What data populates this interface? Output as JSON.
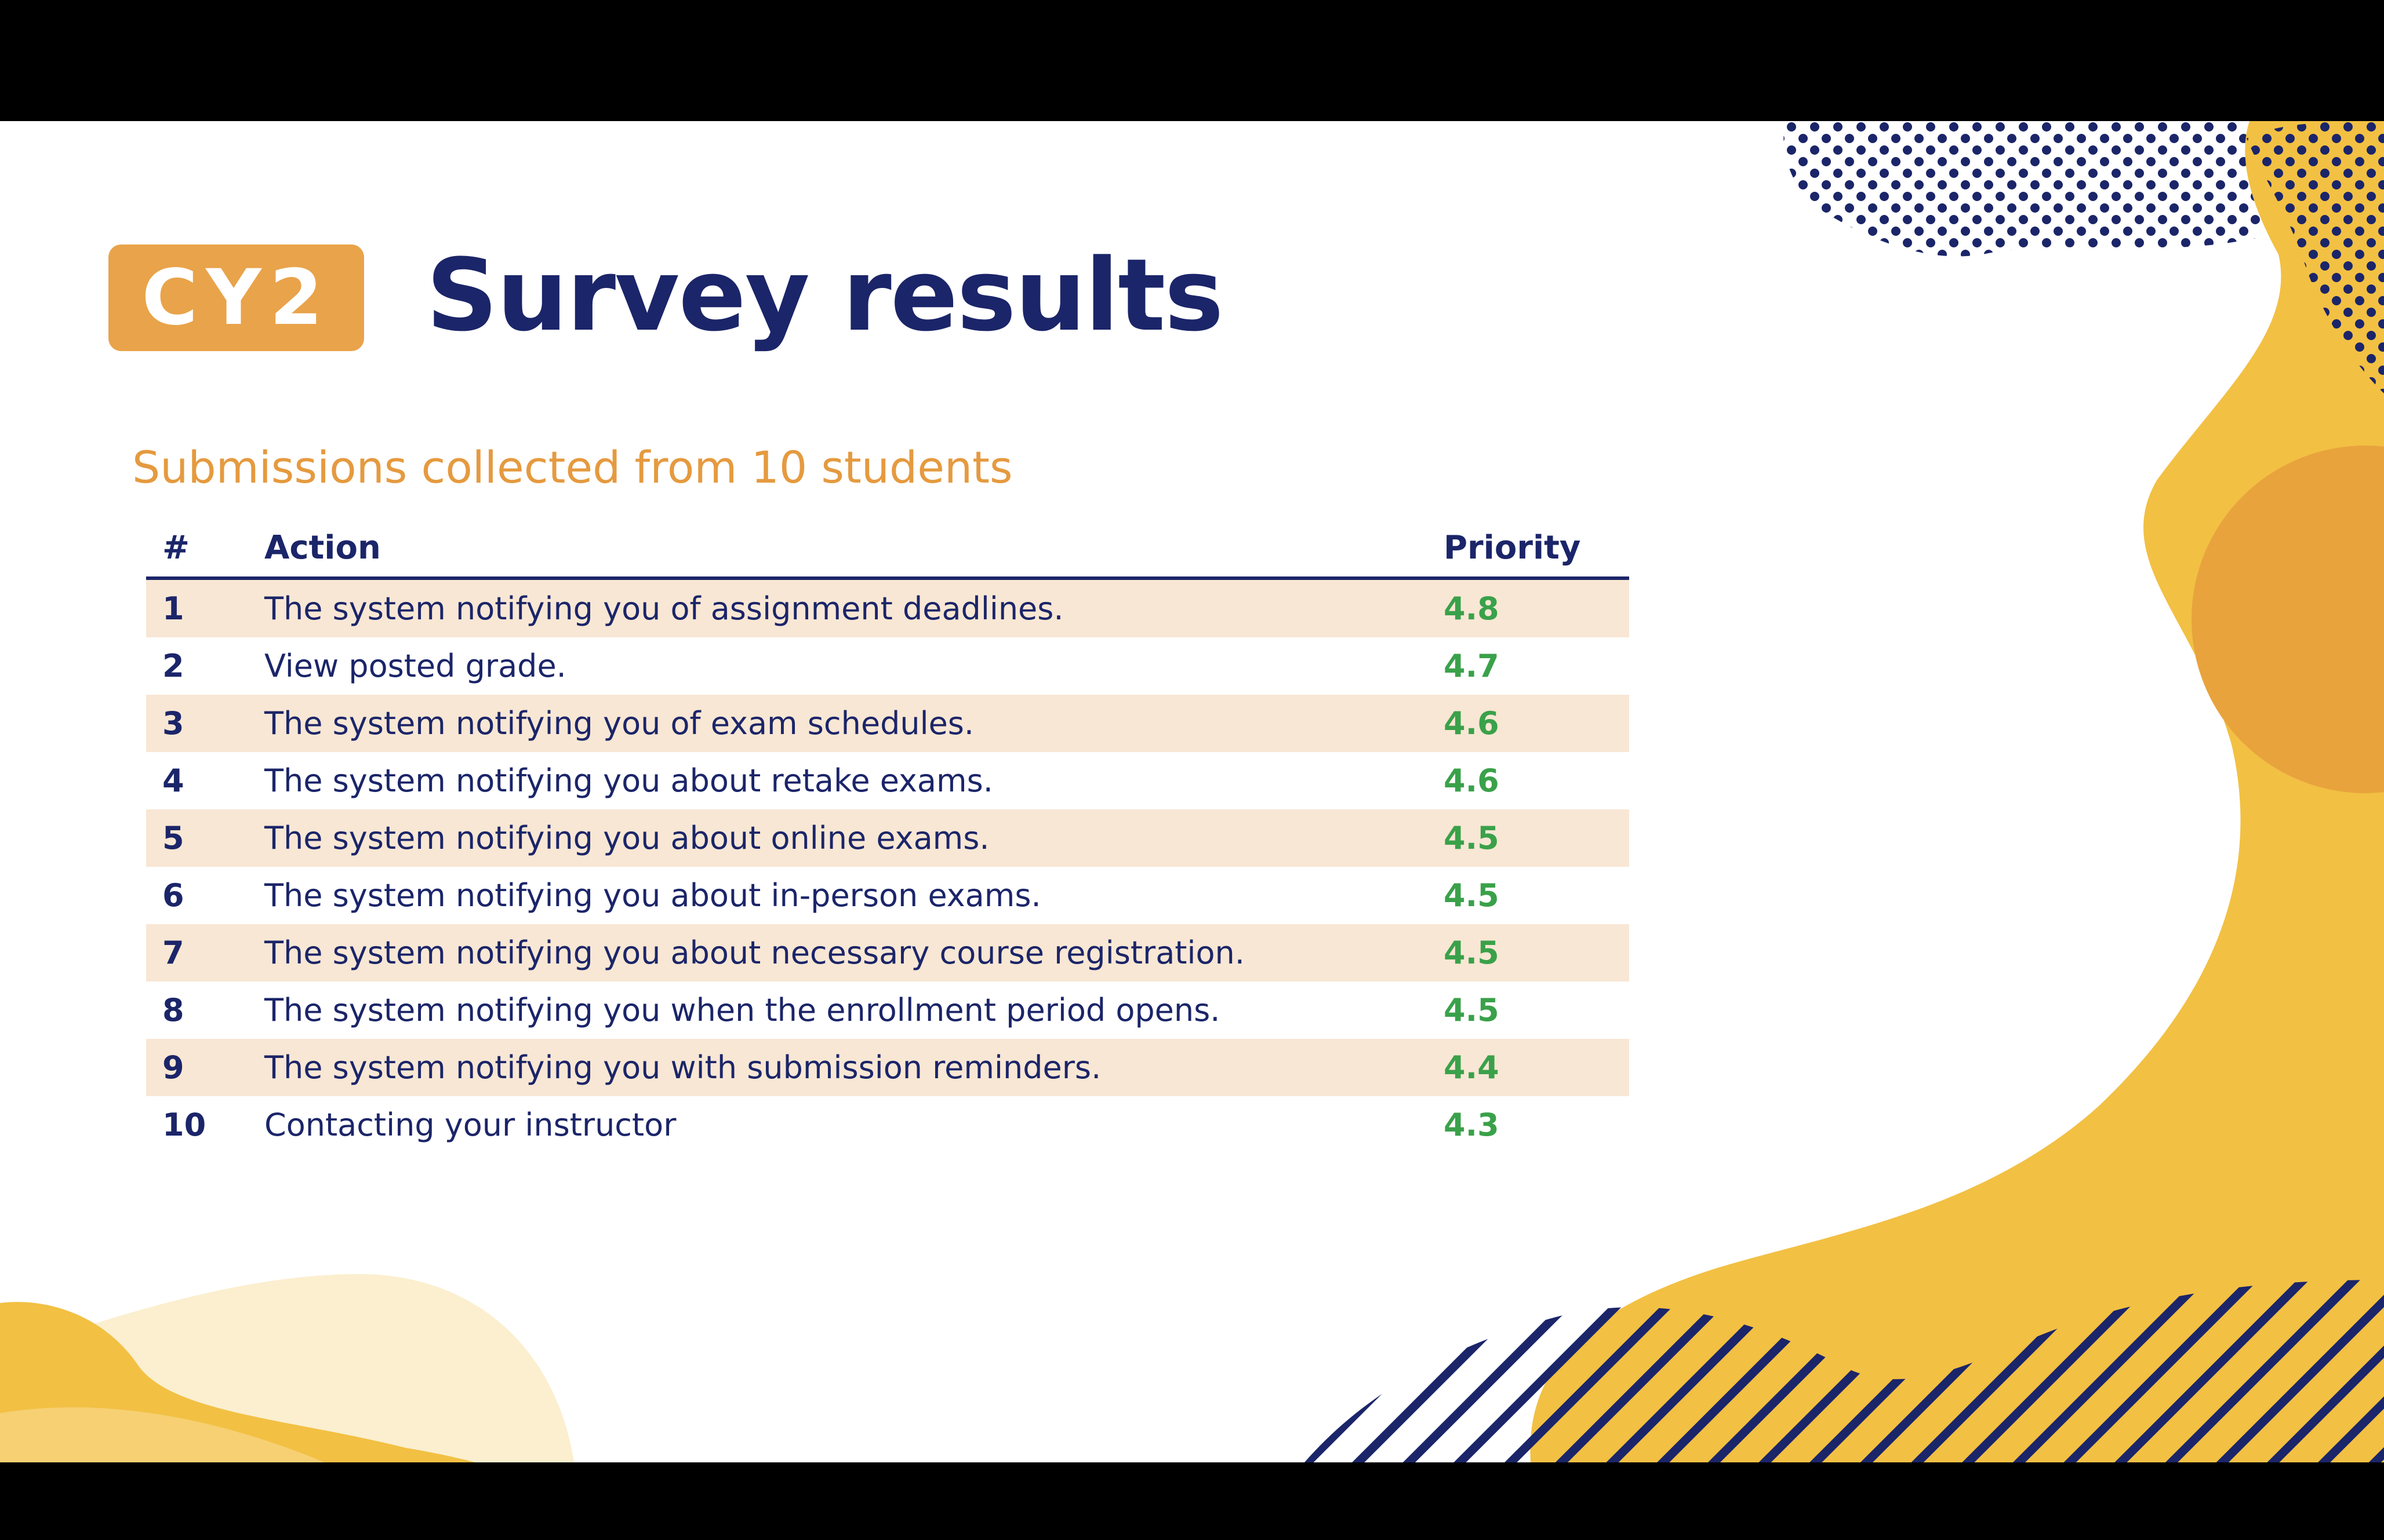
{
  "logo_text": "CY2",
  "title": "Survey results",
  "subtitle": "Submissions collected from 10 students",
  "table": {
    "headers": [
      "#",
      "Action",
      "Priority"
    ],
    "rows": [
      {
        "num": "1",
        "action": "The system notifying you of assignment deadlines.",
        "priority": "4.8"
      },
      {
        "num": "2",
        "action": "View posted grade.",
        "priority": "4.7"
      },
      {
        "num": "3",
        "action": "The system notifying you of exam schedules.",
        "priority": "4.6"
      },
      {
        "num": "4",
        "action": "The system notifying you about retake exams.",
        "priority": "4.6"
      },
      {
        "num": "5",
        "action": "The system notifying you about online exams.",
        "priority": "4.5"
      },
      {
        "num": "6",
        "action": "The system notifying you about in-person exams.",
        "priority": "4.5"
      },
      {
        "num": "7",
        "action": "The system notifying you about necessary course registration.",
        "priority": "4.5"
      },
      {
        "num": "8",
        "action": "The system notifying you when the enrollment period opens.",
        "priority": "4.5"
      },
      {
        "num": "9",
        "action": "The system notifying you with submission reminders.",
        "priority": "4.4"
      },
      {
        "num": "10",
        "action": "Contacting your instructor",
        "priority": "4.3"
      }
    ]
  },
  "colors": {
    "navy": "#1b2569",
    "orange": "#e59a3f",
    "yellow": "#f2c043",
    "row_highlight": "#f8e7d4",
    "priority_green": "#3aa14a"
  }
}
